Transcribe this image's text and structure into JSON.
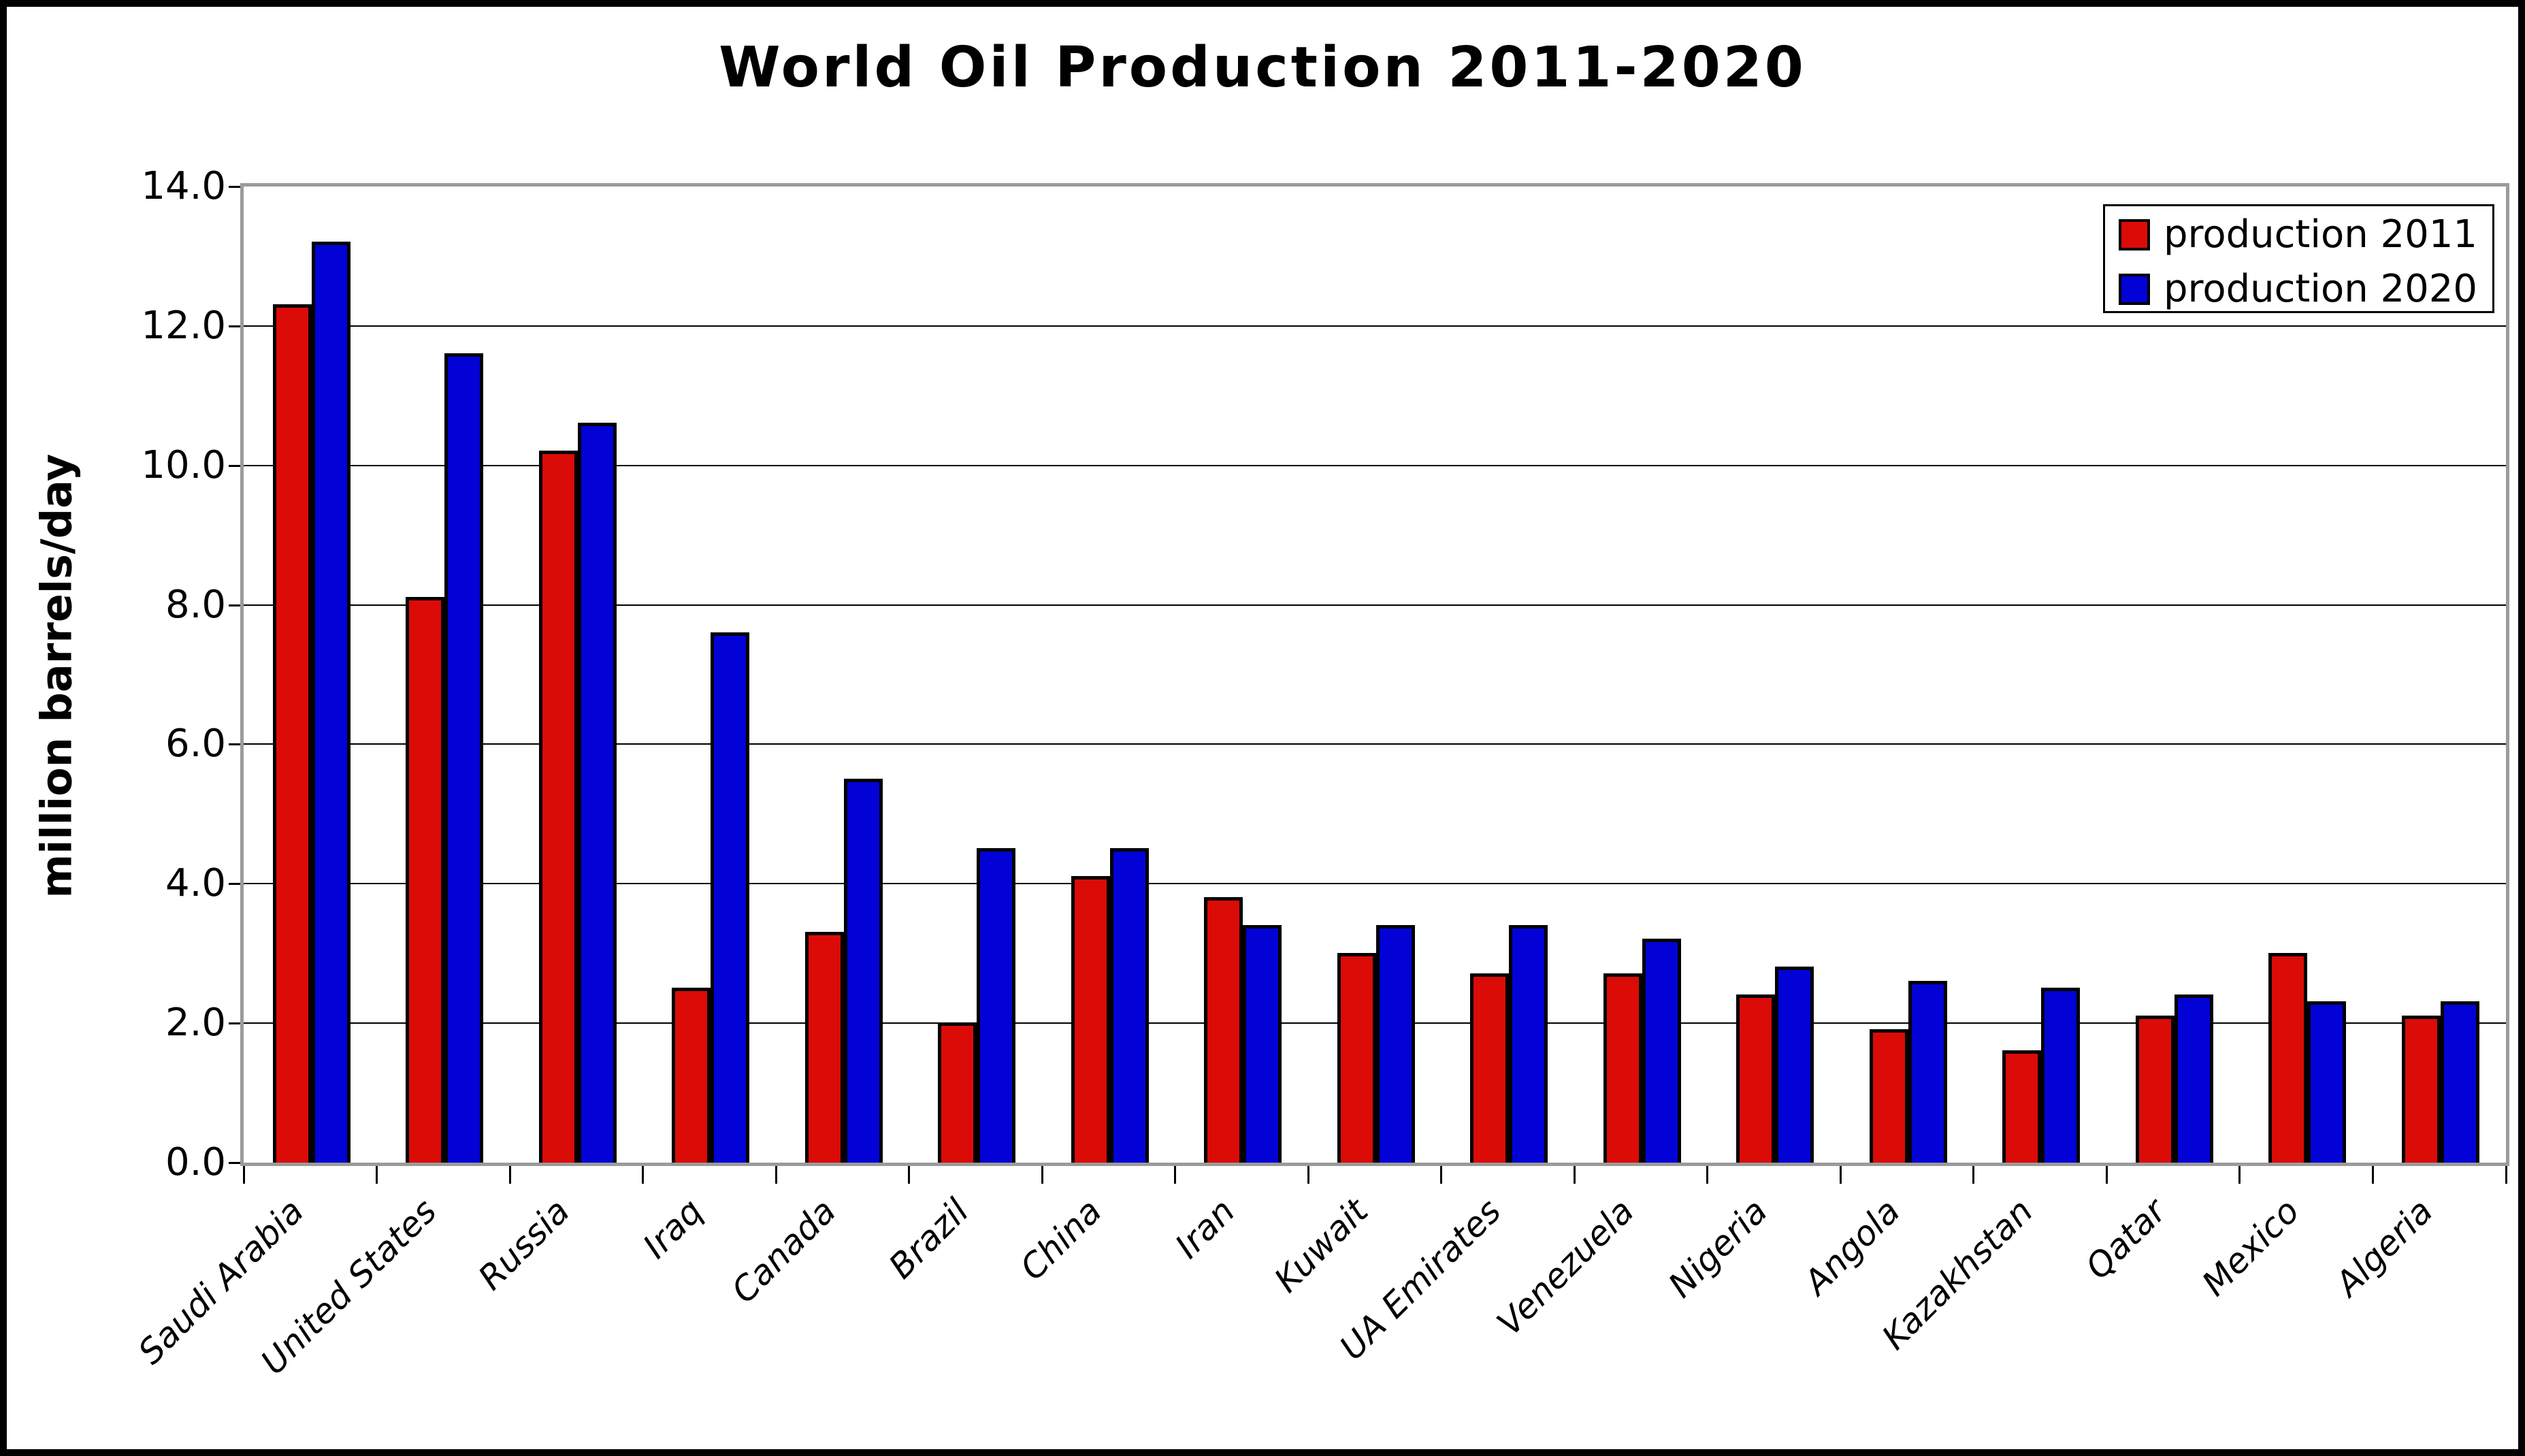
{
  "chart_data": {
    "type": "bar",
    "title": "World Oil Production 2011-2020",
    "xlabel": "",
    "ylabel": "million barrels/day",
    "ylim": [
      0,
      14
    ],
    "ytick_step": 2,
    "ytick_decimals": 1,
    "grid": "horizontal",
    "legend_position": "top-right",
    "categories": [
      "Saudi Arabia",
      "United States",
      "Russia",
      "Iraq",
      "Canada",
      "Brazil",
      "China",
      "Iran",
      "Kuwait",
      "UA Emirates",
      "Venezuela",
      "Nigeria",
      "Angola",
      "Kazakhstan",
      "Qatar",
      "Mexico",
      "Algeria"
    ],
    "series": [
      {
        "name": "production 2011",
        "color": "#db0b07",
        "values": [
          12.3,
          8.1,
          10.2,
          2.5,
          3.3,
          2.0,
          4.1,
          3.8,
          3.0,
          2.7,
          2.7,
          2.4,
          1.9,
          1.6,
          2.1,
          3.0,
          2.1
        ]
      },
      {
        "name": "production 2020",
        "color": "#0202d6",
        "values": [
          13.2,
          11.6,
          10.6,
          7.6,
          5.5,
          4.5,
          4.5,
          3.4,
          3.4,
          3.4,
          3.2,
          2.8,
          2.6,
          2.5,
          2.4,
          2.3,
          2.3
        ]
      }
    ]
  },
  "colors": {
    "background": "#ffffff",
    "frame": "#000000",
    "plot_border": "#9b9b9b",
    "gridline": "#000000",
    "bar_outline": "#000000"
  }
}
